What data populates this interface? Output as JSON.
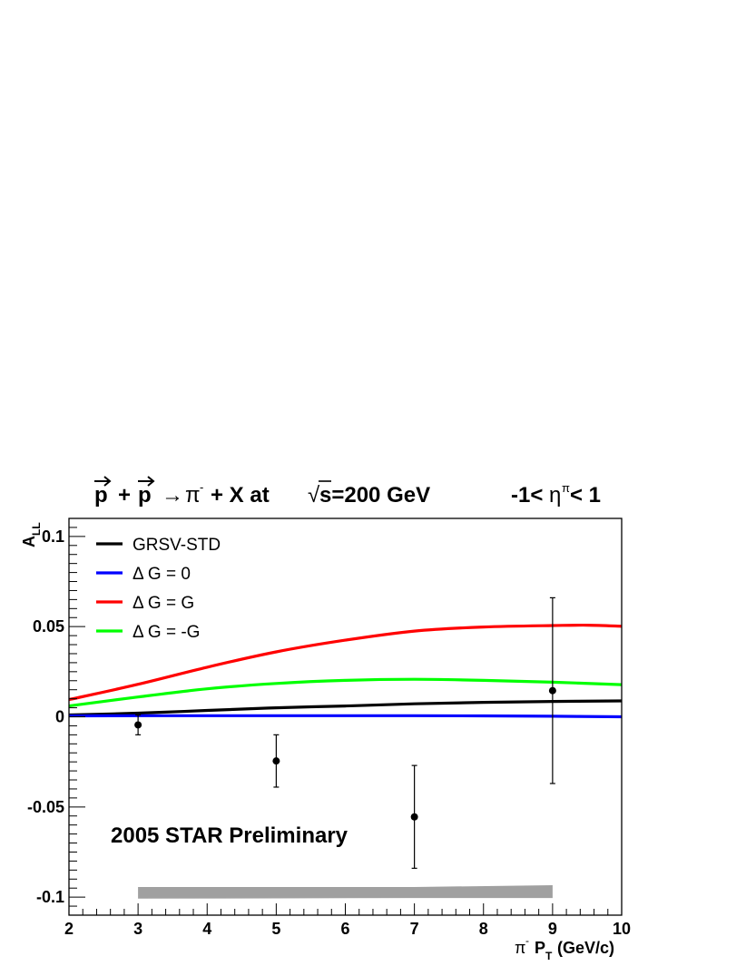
{
  "chart_data": {
    "type": "line",
    "title": "p + p → π⁻ + X at √s=200 GeV",
    "title_parts": {
      "p1": "p",
      "plus": "+",
      "p2": "p",
      "arrow": "→",
      "pi": "π",
      "minus": "-",
      "rest": "+ X at",
      "sqrt": "√",
      "s_expr": "s=200 GeV"
    },
    "eta_cut": {
      "prefix": "-1<",
      "eta": "η",
      "sup": "π",
      "suffix": "< 1"
    },
    "ylabel": {
      "main": "A",
      "sub": "LL"
    },
    "xlabel": {
      "pi": "π",
      "sup": "-",
      "p": "P",
      "sub": "T",
      "unit": "(GeV/c)"
    },
    "xlim": [
      2,
      10
    ],
    "ylim": [
      -0.11,
      0.11
    ],
    "x_ticks": [
      2,
      3,
      4,
      5,
      6,
      7,
      8,
      9,
      10
    ],
    "x_tick_labels": [
      "2",
      "3",
      "4",
      "5",
      "6",
      "7",
      "8",
      "9",
      "10"
    ],
    "y_ticks": [
      -0.1,
      -0.05,
      0,
      0.05,
      0.1
    ],
    "y_tick_labels": [
      "-0.1",
      "-0.05",
      "0",
      "0.05",
      "0.1"
    ],
    "annotation": "2005 STAR Preliminary",
    "legend_position": "top-left",
    "grid": false,
    "series": [
      {
        "name": "GRSV-STD",
        "color": "#000000",
        "x": [
          2,
          3,
          4,
          5,
          6,
          7,
          8,
          9,
          10
        ],
        "y": [
          0.001,
          0.002,
          0.0035,
          0.005,
          0.006,
          0.0072,
          0.008,
          0.0085,
          0.0088
        ]
      },
      {
        "name": "Δ G =  0",
        "color": "#0000ff",
        "x": [
          2,
          3,
          4,
          5,
          6,
          7,
          8,
          9,
          10
        ],
        "y": [
          0.0005,
          0.0006,
          0.0006,
          0.0006,
          0.0006,
          0.0006,
          0.0005,
          0.0003,
          0.0
        ]
      },
      {
        "name": "Δ G =  G",
        "color": "#ff0000",
        "x": [
          2,
          3,
          4,
          5,
          6,
          7,
          8,
          9,
          9.5,
          10
        ],
        "y": [
          0.0095,
          0.018,
          0.0275,
          0.036,
          0.0425,
          0.0475,
          0.0498,
          0.0506,
          0.0508,
          0.0502
        ]
      },
      {
        "name": "Δ G = -G",
        "color": "#00ff00",
        "x": [
          2,
          3,
          4,
          5,
          6,
          7,
          8,
          9,
          10
        ],
        "y": [
          0.006,
          0.011,
          0.0155,
          0.0185,
          0.0202,
          0.0208,
          0.0202,
          0.0192,
          0.0178
        ]
      }
    ],
    "data_points": [
      {
        "x": 3,
        "y": -0.0045,
        "err": 0.0055
      },
      {
        "x": 5,
        "y": -0.0245,
        "err": 0.0145
      },
      {
        "x": 7,
        "y": -0.0555,
        "err": 0.0285
      },
      {
        "x": 9,
        "y": 0.0145,
        "err": 0.0515
      }
    ],
    "systematic_band": {
      "color": "#a0a0a0",
      "x": [
        3,
        5,
        7,
        9
      ],
      "low": [
        -0.1008,
        -0.1007,
        -0.1005,
        -0.1005
      ],
      "high": [
        -0.0944,
        -0.0944,
        -0.0944,
        -0.0934
      ]
    }
  }
}
